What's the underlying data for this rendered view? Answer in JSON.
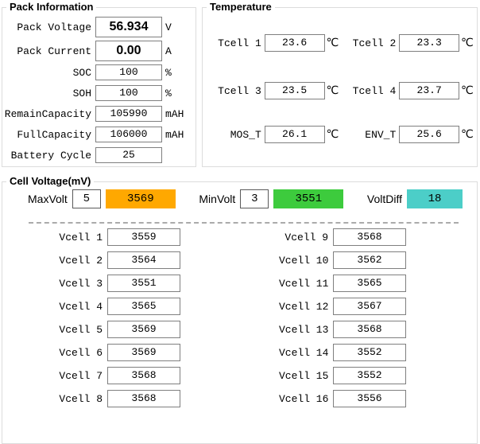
{
  "colors": {
    "max_bg": "#FFA800",
    "min_bg": "#3DCB3D",
    "diff_bg": "#4CCEC8"
  },
  "pack_information": {
    "title": "Pack Information",
    "rows": [
      {
        "label": "Pack Voltage",
        "value": "56.934",
        "unit": "V"
      },
      {
        "label": "Pack Current",
        "value": "0.00",
        "unit": "A"
      },
      {
        "label": "SOC",
        "value": "100",
        "unit": "%"
      },
      {
        "label": "SOH",
        "value": "100",
        "unit": "%"
      },
      {
        "label": "RemainCapacity",
        "value": "105990",
        "unit": "mAH"
      },
      {
        "label": "FullCapacity",
        "value": "106000",
        "unit": "mAH"
      },
      {
        "label": "Battery Cycle",
        "value": "25",
        "unit": ""
      }
    ]
  },
  "temperature": {
    "title": "Temperature",
    "unit": "℃",
    "sensors": [
      {
        "label": "Tcell 1",
        "value": "23.6"
      },
      {
        "label": "Tcell 2",
        "value": "23.3"
      },
      {
        "label": "Tcell 3",
        "value": "23.5"
      },
      {
        "label": "Tcell 4",
        "value": "23.7"
      },
      {
        "label": "MOS_T",
        "value": "26.1"
      },
      {
        "label": "ENV_T",
        "value": "25.6"
      }
    ]
  },
  "cell_voltage": {
    "title": "Cell Voltage(mV)",
    "max_label": "MaxVolt",
    "max_index": "5",
    "max_value": "3569",
    "min_label": "MinVolt",
    "min_index": "3",
    "min_value": "3551",
    "diff_label": "VoltDiff",
    "diff_value": "18",
    "cells": [
      {
        "label": "Vcell 1",
        "value": "3559"
      },
      {
        "label": "Vcell 2",
        "value": "3564"
      },
      {
        "label": "Vcell 3",
        "value": "3551"
      },
      {
        "label": "Vcell 4",
        "value": "3565"
      },
      {
        "label": "Vcell 5",
        "value": "3569"
      },
      {
        "label": "Vcell 6",
        "value": "3569"
      },
      {
        "label": "Vcell 7",
        "value": "3568"
      },
      {
        "label": "Vcell 8",
        "value": "3568"
      },
      {
        "label": "Vcell 9",
        "value": "3568"
      },
      {
        "label": "Vcell 10",
        "value": "3562"
      },
      {
        "label": "Vcell 11",
        "value": "3565"
      },
      {
        "label": "Vcell 12",
        "value": "3567"
      },
      {
        "label": "Vcell 13",
        "value": "3568"
      },
      {
        "label": "Vcell 14",
        "value": "3552"
      },
      {
        "label": "Vcell 15",
        "value": "3552"
      },
      {
        "label": "Vcell 16",
        "value": "3556"
      }
    ]
  }
}
